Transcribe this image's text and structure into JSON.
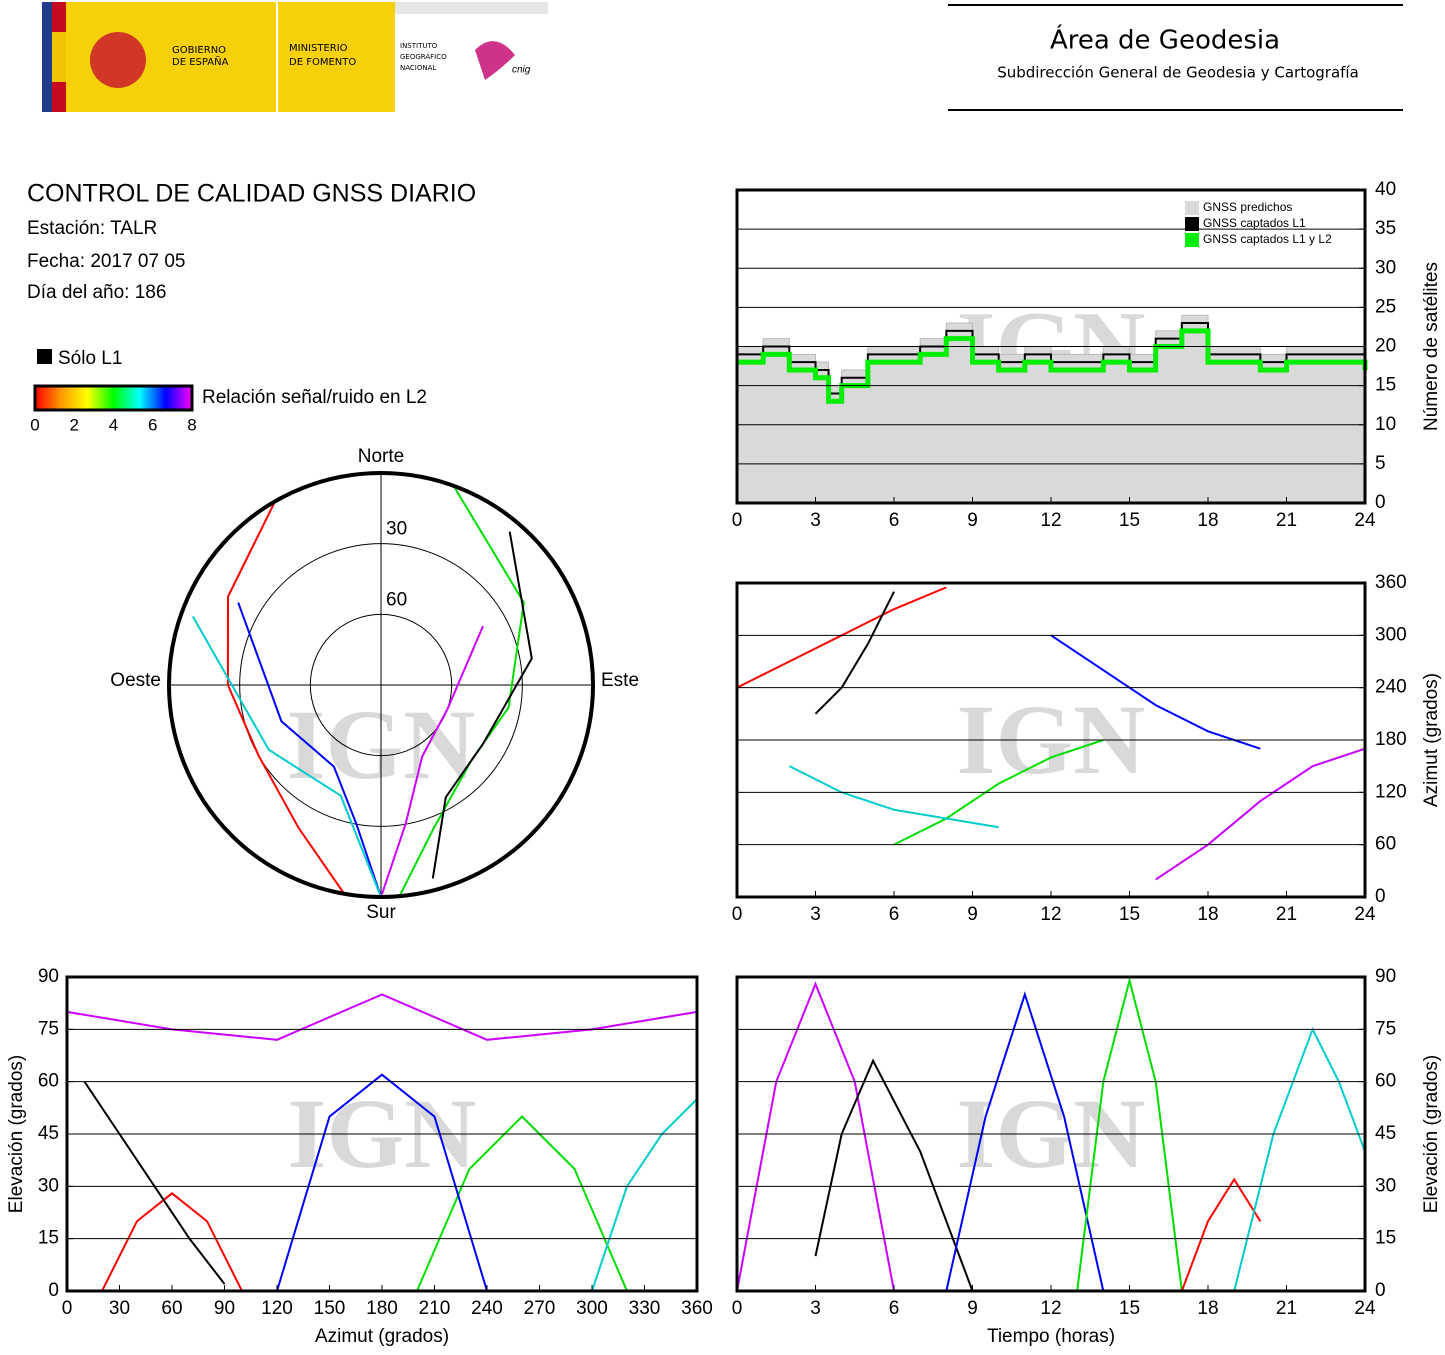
{
  "header": {
    "gov": [
      "GOBIERNO",
      "DE ESPAÑA"
    ],
    "ministry": [
      "MINISTERIO",
      "DE FOMENTO"
    ],
    "institute": [
      "INSTITUTO",
      "GEOGRÁFICO",
      "NACIONAL"
    ],
    "cnig": "cnig",
    "area": "Área de Geodesia",
    "subdirection": "Subdirección General de Geodesia y Cartografía"
  },
  "info": {
    "title": "CONTROL DE CALIDAD GNSS DIARIO",
    "station": "Estación: TALR",
    "date": "Fecha: 2017 07 05",
    "doy": "Día del año: 186"
  },
  "legend": {
    "l1_only": "Sólo L1",
    "colorbar_label": "Relación señal/ruido en L2",
    "colorbar_lim": [
      0,
      8
    ],
    "colorbar_ticks": [
      0,
      2,
      4,
      6,
      8
    ],
    "colorbar_colors": [
      "#ff0000",
      "#ff9900",
      "#ffff00",
      "#00ff00",
      "#00ffff",
      "#0000ff",
      "#ff00ff"
    ]
  },
  "watermark": "IGN",
  "chart_data": [
    {
      "type": "step",
      "y_label": "Número de satélites",
      "y_axis_side": "right",
      "legend_position": "upper right",
      "x": [
        0,
        1,
        2,
        3,
        3.5,
        4,
        5,
        6,
        7,
        8,
        9,
        10,
        11,
        12,
        13,
        14,
        15,
        16,
        17,
        18,
        19,
        20,
        21,
        22,
        23,
        24
      ],
      "series": [
        {
          "name": "GNSS predichos",
          "color": "#d9d9d9",
          "values": [
            20,
            21,
            19,
            18,
            15,
            17,
            20,
            20,
            21,
            23,
            20,
            19,
            20,
            19,
            19,
            20,
            19,
            22,
            24,
            20,
            20,
            19,
            20,
            20,
            20,
            19
          ]
        },
        {
          "name": "GNSS captados L1",
          "color": "#000000",
          "values": [
            19,
            20,
            18,
            17,
            14,
            16,
            19,
            19,
            20,
            22,
            19,
            18,
            19,
            18,
            18,
            19,
            18,
            21,
            23,
            19,
            19,
            18,
            19,
            19,
            19,
            18
          ]
        },
        {
          "name": "GNSS captados L1 y L2",
          "color": "#00ee00",
          "values": [
            18,
            19,
            17,
            16,
            13,
            15,
            18,
            18,
            19,
            21,
            18,
            17,
            18,
            17,
            17,
            18,
            17,
            20,
            22,
            18,
            18,
            17,
            18,
            18,
            18,
            17
          ]
        }
      ],
      "xlim": [
        0,
        24
      ],
      "xticks": [
        0,
        3,
        6,
        9,
        12,
        15,
        18,
        21,
        24
      ],
      "ylim": [
        0,
        40
      ],
      "yticks": [
        0,
        5,
        10,
        15,
        20,
        25,
        30,
        35,
        40
      ],
      "grid": true
    },
    {
      "type": "polar",
      "directions": {
        "north": "Norte",
        "south": "Sur",
        "west": "Oeste",
        "east": "Este"
      },
      "rlim": [
        90,
        0
      ],
      "rticks": [
        30,
        60
      ],
      "series": [
        {
          "color": "#ff0000",
          "azimuth": [
            330,
            300,
            270,
            240,
            210,
            190
          ],
          "elevation": [
            0,
            15,
            25,
            30,
            20,
            0
          ]
        },
        {
          "color": "#00dd00",
          "azimuth": [
            20,
            60,
            100,
            130,
            160,
            175
          ],
          "elevation": [
            0,
            20,
            35,
            40,
            25,
            0
          ]
        },
        {
          "color": "#0000ff",
          "azimuth": [
            300,
            250,
            210,
            190,
            180
          ],
          "elevation": [
            20,
            45,
            50,
            30,
            0
          ]
        },
        {
          "color": "#cc00ff",
          "azimuth": [
            60,
            110,
            150,
            170,
            180
          ],
          "elevation": [
            40,
            60,
            55,
            30,
            0
          ]
        },
        {
          "color": "#00cccc",
          "azimuth": [
            290,
            240,
            200,
            180
          ],
          "elevation": [
            5,
            35,
            40,
            0
          ]
        },
        {
          "color": "#000000",
          "azimuth": [
            40,
            80,
            120,
            150,
            165
          ],
          "elevation": [
            5,
            25,
            40,
            35,
            5
          ]
        }
      ]
    },
    {
      "type": "line",
      "y_label": "Azimut (grados)",
      "y_axis_side": "right",
      "series": [
        {
          "color": "#ff0000",
          "x": [
            0,
            2,
            4,
            6,
            8
          ],
          "values": [
            240,
            270,
            300,
            330,
            355
          ]
        },
        {
          "color": "#00dd00",
          "x": [
            6,
            8,
            10,
            12,
            14
          ],
          "values": [
            60,
            90,
            130,
            160,
            180
          ]
        },
        {
          "color": "#0000ff",
          "x": [
            12,
            14,
            16,
            18,
            20
          ],
          "values": [
            300,
            260,
            220,
            190,
            170
          ]
        },
        {
          "color": "#cc00ff",
          "x": [
            16,
            18,
            20,
            22,
            24
          ],
          "values": [
            20,
            60,
            110,
            150,
            170
          ]
        },
        {
          "color": "#00cccc",
          "x": [
            2,
            4,
            6,
            8,
            10
          ],
          "values": [
            150,
            120,
            100,
            90,
            80
          ]
        },
        {
          "color": "#000000",
          "x": [
            3,
            4,
            5,
            6
          ],
          "values": [
            210,
            240,
            290,
            350
          ]
        }
      ],
      "xlim": [
        0,
        24
      ],
      "xticks": [
        0,
        3,
        6,
        9,
        12,
        15,
        18,
        21,
        24
      ],
      "ylim": [
        0,
        360
      ],
      "yticks": [
        0,
        60,
        120,
        180,
        240,
        300,
        360
      ],
      "grid": true
    },
    {
      "type": "line",
      "x_label": "Azimut (grados)",
      "y_label": "Elevación (grados)",
      "y_axis_side": "left",
      "series": [
        {
          "color": "#ff0000",
          "x": [
            20,
            40,
            60,
            80,
            100
          ],
          "values": [
            0,
            20,
            28,
            20,
            0
          ]
        },
        {
          "color": "#00dd00",
          "x": [
            200,
            230,
            260,
            290,
            320
          ],
          "values": [
            0,
            35,
            50,
            35,
            0
          ]
        },
        {
          "color": "#0000ff",
          "x": [
            120,
            150,
            180,
            210,
            240
          ],
          "values": [
            0,
            50,
            62,
            50,
            0
          ]
        },
        {
          "color": "#cc00ff",
          "x": [
            0,
            60,
            120,
            180,
            240,
            300,
            360
          ],
          "values": [
            80,
            75,
            72,
            85,
            72,
            75,
            80
          ]
        },
        {
          "color": "#00cccc",
          "x": [
            300,
            320,
            340,
            360
          ],
          "values": [
            0,
            30,
            45,
            55
          ]
        },
        {
          "color": "#000000",
          "x": [
            10,
            30,
            50,
            70,
            90
          ],
          "values": [
            60,
            45,
            30,
            15,
            2
          ]
        }
      ],
      "xlim": [
        0,
        360
      ],
      "xticks": [
        0,
        30,
        60,
        90,
        120,
        150,
        180,
        210,
        240,
        270,
        300,
        330,
        360
      ],
      "ylim": [
        0,
        90
      ],
      "yticks": [
        0,
        15,
        30,
        45,
        60,
        75,
        90
      ],
      "grid": true
    },
    {
      "type": "line",
      "x_label": "Tiempo (horas)",
      "y_label": "Elevación (grados)",
      "y_axis_side": "right",
      "series": [
        {
          "color": "#cc00ff",
          "x": [
            0,
            1.5,
            3,
            4.5,
            6
          ],
          "values": [
            0,
            60,
            88,
            60,
            0
          ]
        },
        {
          "color": "#000000",
          "x": [
            3,
            4,
            5.2,
            7,
            9
          ],
          "values": [
            10,
            45,
            66,
            40,
            0
          ]
        },
        {
          "color": "#0000ff",
          "x": [
            8,
            9.5,
            11,
            12.5,
            14
          ],
          "values": [
            0,
            50,
            85,
            50,
            0
          ]
        },
        {
          "color": "#00dd00",
          "x": [
            13,
            14,
            15,
            16,
            17
          ],
          "values": [
            0,
            60,
            89,
            60,
            0
          ]
        },
        {
          "color": "#ff0000",
          "x": [
            17,
            18,
            19,
            20
          ],
          "values": [
            0,
            20,
            32,
            20
          ]
        },
        {
          "color": "#00cccc",
          "x": [
            19,
            20.5,
            22,
            23,
            24
          ],
          "values": [
            0,
            45,
            75,
            60,
            40
          ]
        }
      ],
      "xlim": [
        0,
        24
      ],
      "xticks": [
        0,
        3,
        6,
        9,
        12,
        15,
        18,
        21,
        24
      ],
      "ylim": [
        0,
        90
      ],
      "yticks": [
        0,
        15,
        30,
        45,
        60,
        75,
        90
      ],
      "grid": true
    }
  ]
}
